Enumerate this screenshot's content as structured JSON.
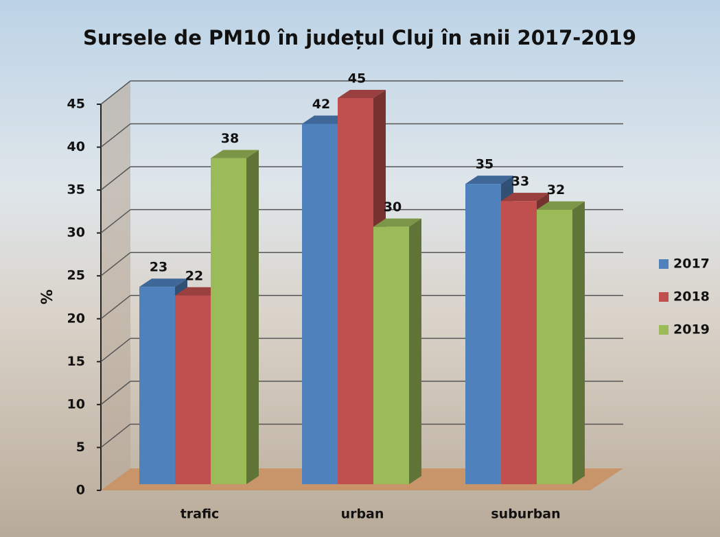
{
  "chart_data": {
    "type": "bar3d",
    "title": "Sursele de PM10 în județul Cluj în anii 2017-2019",
    "y_label": "%",
    "categories": [
      "trafic",
      "urban",
      "suburban"
    ],
    "series": [
      {
        "name": "2017",
        "color": "#4f81bd",
        "values": [
          23,
          42,
          35
        ]
      },
      {
        "name": "2018",
        "color": "#c0504d",
        "values": [
          22,
          45,
          33
        ]
      },
      {
        "name": "2019",
        "color": "#9bbb59",
        "values": [
          38,
          30,
          32
        ]
      }
    ],
    "ylim": [
      0,
      45
    ],
    "yticks": [
      0,
      5,
      10,
      15,
      20,
      25,
      30,
      35,
      40,
      45
    ],
    "grid": true,
    "legend": "right"
  }
}
